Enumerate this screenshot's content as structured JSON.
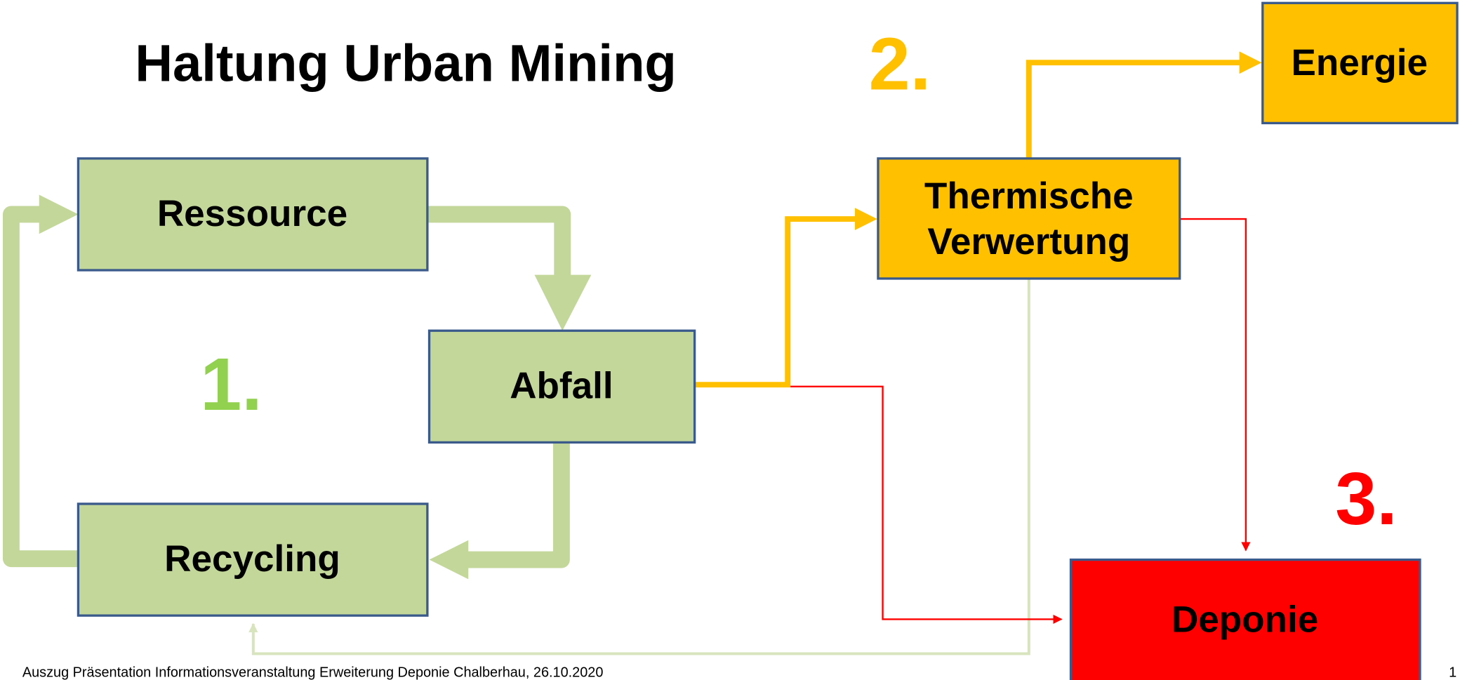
{
  "title": "Haltung Urban Mining",
  "steps": [
    "1.",
    "2.",
    "3."
  ],
  "nodes": [
    {
      "label": "Ressource"
    },
    {
      "label": "Abfall"
    },
    {
      "label": "Recycling"
    },
    {
      "label": [
        "Thermische",
        "Verwertung"
      ]
    },
    {
      "label": "Energie"
    },
    {
      "label": "Deponie"
    }
  ],
  "footer": "Auszug Präsentation Informationsveranstaltung Erweiterung Deponie Chalberhau, 26.10.2020",
  "page_number": "1"
}
